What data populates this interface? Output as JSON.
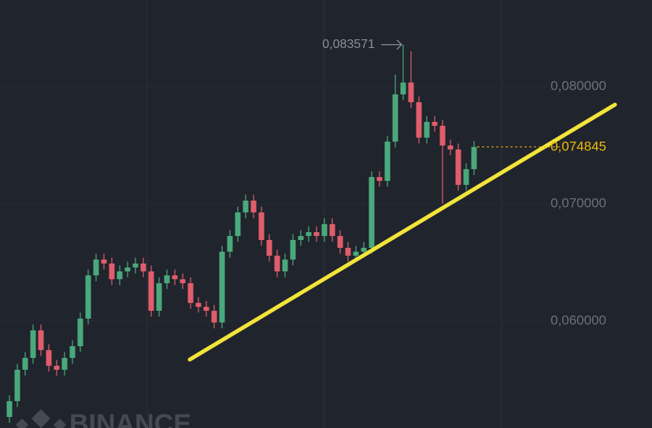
{
  "chart_data": {
    "type": "candlestick",
    "watermark": "BINANCE",
    "ylim": [
      0.05087,
      0.08738
    ],
    "yticks": [
      {
        "value": 0.08,
        "label": "0,080000"
      },
      {
        "value": 0.07,
        "label": "0,070000"
      },
      {
        "value": 0.06,
        "label": "0,060000"
      }
    ],
    "grid": true,
    "up_color": "#4aa97c",
    "down_color": "#e05d6b",
    "price_line": {
      "value": 0.074845,
      "label": "0,074845",
      "color": "#f0b90b"
    },
    "high_marker": {
      "value": 0.083571,
      "label": "0,083571"
    },
    "open": [
      0.05181,
      0.05316,
      0.05584,
      0.05685,
      0.0592,
      0.05752,
      0.05618,
      0.05584,
      0.05685,
      0.05785,
      0.0602,
      0.06389,
      0.06524,
      0.0649,
      0.06356,
      0.06423,
      0.06456,
      0.0649,
      0.06423,
      0.06087,
      0.06322,
      0.06389,
      0.06356,
      0.06322,
      0.06154,
      0.06121,
      0.06087,
      0.05987,
      0.06591,
      0.06725,
      0.06926,
      0.07027,
      0.06926,
      0.06691,
      0.06557,
      0.06423,
      0.06524,
      0.06691,
      0.06725,
      0.06758,
      0.06725,
      0.06826,
      0.06725,
      0.06624,
      0.06557,
      0.06591,
      0.06624,
      0.07228,
      0.07195,
      0.0753,
      0.07933,
      0.08034,
      0.07866,
      0.07564,
      0.07698,
      0.07665,
      0.07497,
      0.07463,
      0.07161,
      0.07295
    ],
    "close": [
      0.05316,
      0.05584,
      0.05685,
      0.0592,
      0.05752,
      0.05618,
      0.05584,
      0.05685,
      0.05785,
      0.0602,
      0.06389,
      0.06524,
      0.0649,
      0.06356,
      0.06423,
      0.06456,
      0.0649,
      0.06423,
      0.06087,
      0.06322,
      0.06389,
      0.06356,
      0.06322,
      0.06154,
      0.06121,
      0.06087,
      0.05987,
      0.06591,
      0.06725,
      0.06926,
      0.07027,
      0.06926,
      0.06691,
      0.06557,
      0.06423,
      0.06524,
      0.06691,
      0.06725,
      0.06758,
      0.06725,
      0.06826,
      0.06725,
      0.06624,
      0.06557,
      0.06591,
      0.06624,
      0.07228,
      0.07195,
      0.0753,
      0.07933,
      0.08034,
      0.07866,
      0.07564,
      0.07698,
      0.07665,
      0.07497,
      0.07463,
      0.07161,
      0.07295,
      0.074845
    ],
    "high": [
      0.05366,
      0.05634,
      0.05735,
      0.0597,
      0.0597,
      0.05802,
      0.05668,
      0.05735,
      0.05835,
      0.0607,
      0.06439,
      0.06574,
      0.06574,
      0.0654,
      0.06473,
      0.06506,
      0.0654,
      0.0654,
      0.06473,
      0.06372,
      0.06439,
      0.06439,
      0.06406,
      0.06372,
      0.06204,
      0.06171,
      0.06137,
      0.06641,
      0.06775,
      0.06976,
      0.07077,
      0.07077,
      0.06976,
      0.06741,
      0.06607,
      0.06574,
      0.06741,
      0.06775,
      0.06808,
      0.06808,
      0.06876,
      0.06876,
      0.06775,
      0.06674,
      0.06641,
      0.06674,
      0.07278,
      0.07278,
      0.0758,
      0.081,
      0.083571,
      0.083,
      0.07916,
      0.07748,
      0.07748,
      0.07715,
      0.07547,
      0.07513,
      0.07345,
      0.07535
    ],
    "low": [
      0.05131,
      0.05266,
      0.05534,
      0.05635,
      0.05702,
      0.05568,
      0.05534,
      0.05534,
      0.05635,
      0.05735,
      0.0597,
      0.06339,
      0.0644,
      0.06306,
      0.06306,
      0.06373,
      0.06406,
      0.06373,
      0.06037,
      0.06037,
      0.06272,
      0.06306,
      0.06272,
      0.06104,
      0.06071,
      0.06037,
      0.05937,
      0.05937,
      0.06541,
      0.06675,
      0.06876,
      0.06876,
      0.06641,
      0.06507,
      0.06373,
      0.06373,
      0.06474,
      0.06641,
      0.06675,
      0.06675,
      0.06675,
      0.06675,
      0.06574,
      0.06507,
      0.06507,
      0.06541,
      0.06574,
      0.07145,
      0.07145,
      0.0748,
      0.07883,
      0.07816,
      0.07514,
      0.07514,
      0.07615,
      0.07,
      0.07413,
      0.07111,
      0.07111,
      0.07245
    ]
  }
}
